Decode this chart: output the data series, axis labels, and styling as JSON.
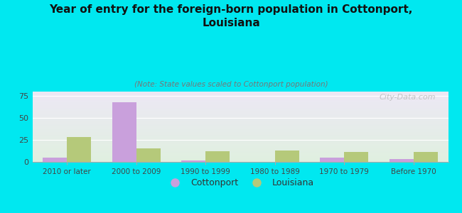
{
  "title": "Year of entry for the foreign-born population in Cottonport,\nLouisiana",
  "subtitle": "(Note: State values scaled to Cottonport population)",
  "categories": [
    "2010 or later",
    "2000 to 2009",
    "1990 to 1999",
    "1980 to 1989",
    "1970 to 1979",
    "Before 1970"
  ],
  "cottonport_values": [
    5,
    68,
    2,
    0,
    5,
    3
  ],
  "louisiana_values": [
    28,
    15,
    12,
    13,
    11,
    11
  ],
  "cottonport_color": "#c9a0dc",
  "louisiana_color": "#b5c97a",
  "background_color": "#00e8f0",
  "grad_top_color": "#ede8f5",
  "grad_bottom_color": "#e0f0e0",
  "ylim": [
    0,
    80
  ],
  "yticks": [
    0,
    25,
    50,
    75
  ],
  "bar_width": 0.35,
  "watermark": "City-Data.com",
  "legend_labels": [
    "Cottonport",
    "Louisiana"
  ]
}
